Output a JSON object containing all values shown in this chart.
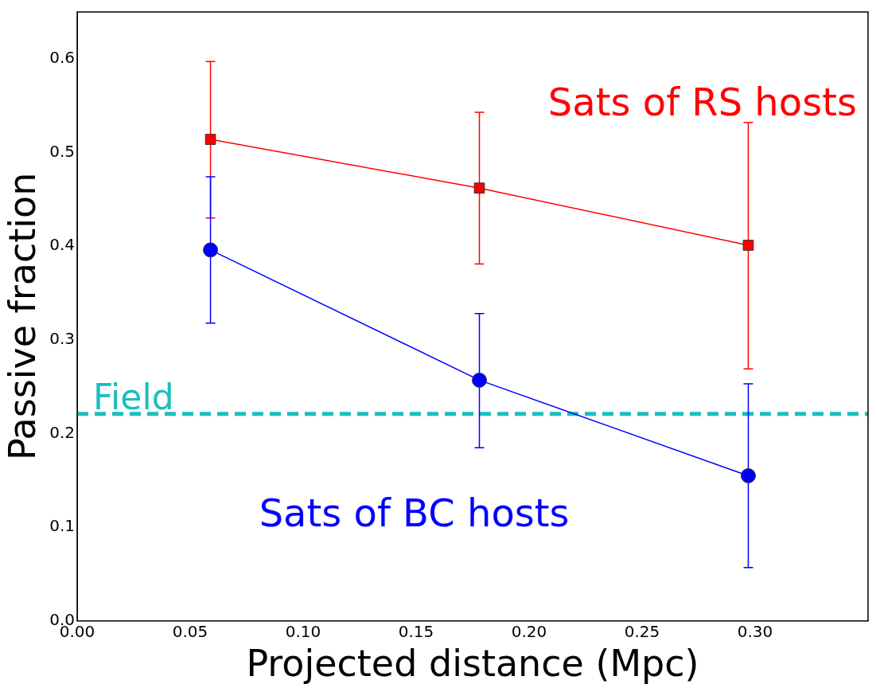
{
  "chart_data": {
    "type": "line",
    "xlabel": "Projected distance (Mpc)",
    "ylabel": "Passive fraction",
    "x": [
      0.059,
      0.178,
      0.297
    ],
    "series": [
      {
        "name": "Sats of RS hosts",
        "color": "#ff0000",
        "marker": "square",
        "values": [
          0.514,
          0.462,
          0.401
        ],
        "errors": [
          [
            0.43,
            0.597
          ],
          [
            0.381,
            0.543
          ],
          [
            0.269,
            0.532
          ]
        ]
      },
      {
        "name": "Sats of BC hosts",
        "color": "#0000ff",
        "marker": "circle",
        "values": [
          0.396,
          0.257,
          0.155
        ],
        "errors": [
          [
            0.318,
            0.474
          ],
          [
            0.185,
            0.328
          ],
          [
            0.057,
            0.253
          ]
        ]
      }
    ],
    "ref_lines": [
      {
        "axis": "y",
        "value": 0.221,
        "label": "Field",
        "color": "#1abfbf",
        "line_style": "dashed"
      }
    ],
    "xlim": [
      0,
      0.35
    ],
    "xticks": [
      {
        "value": 0,
        "label": "0.00"
      },
      {
        "value": 0.05,
        "label": "0.05"
      },
      {
        "value": 0.1,
        "label": "0.10"
      },
      {
        "value": 0.15,
        "label": "0.15"
      },
      {
        "value": 0.2,
        "label": "0.20"
      },
      {
        "value": 0.25,
        "label": "0.25"
      },
      {
        "value": 0.3,
        "label": "0.30"
      }
    ],
    "ylim": [
      0,
      0.65
    ],
    "yticks": [
      {
        "value": 0,
        "label": "0.0"
      },
      {
        "value": 0.1,
        "label": "0.1"
      },
      {
        "value": 0.2,
        "label": "0.2"
      },
      {
        "value": 0.3,
        "label": "0.3"
      },
      {
        "value": 0.4,
        "label": "0.4"
      },
      {
        "value": 0.5,
        "label": "0.5"
      },
      {
        "value": 0.6,
        "label": "0.6"
      }
    ],
    "grid": false,
    "legend": false,
    "line_style": "solid"
  }
}
